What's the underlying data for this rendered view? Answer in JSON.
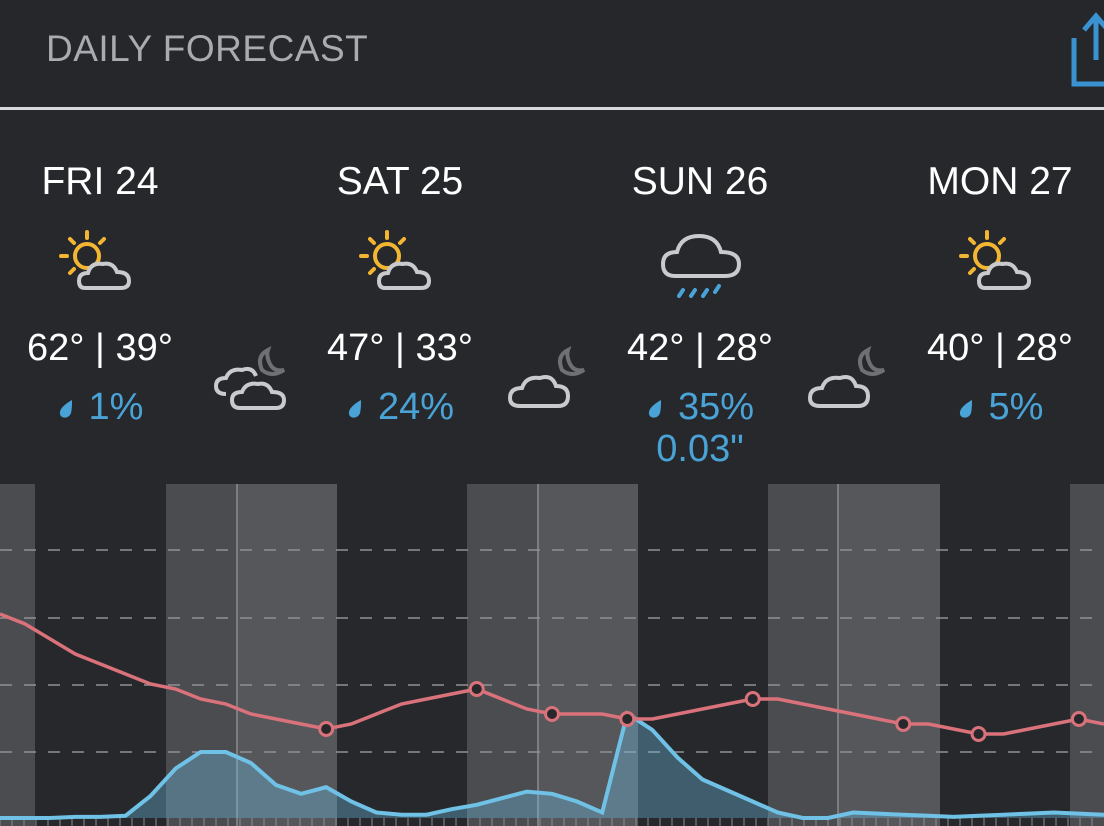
{
  "header": {
    "title": "DAILY FORECAST"
  },
  "days": [
    {
      "name": "FRI 24",
      "temps": "62° | 39°",
      "precip": "1%",
      "amount": "",
      "day_icon": "partly-sunny-icon",
      "night_icon": "partly-cloudy-night-icon"
    },
    {
      "name": "SAT 25",
      "temps": "47° | 33°",
      "precip": "24%",
      "amount": "",
      "day_icon": "partly-sunny-icon",
      "night_icon": "partly-cloudy-night-icon"
    },
    {
      "name": "SUN 26",
      "temps": "42° | 28°",
      "precip": "35%",
      "amount": "0.03\"",
      "day_icon": "rain-icon",
      "night_icon": "partly-cloudy-night-icon"
    },
    {
      "name": "MON 27",
      "temps": "40° | 28°",
      "precip": "5%",
      "amount": "",
      "day_icon": "partly-sunny-icon"
    }
  ],
  "colors": {
    "background": "#26282c",
    "text": "#ffffff",
    "precip": "#4aa3d6",
    "temp_line": "#d9727a",
    "precip_line": "#6fc1e5",
    "sun": "#f2b632",
    "cloud": "#c9cacc"
  },
  "chart_data": {
    "type": "line",
    "series": [
      {
        "values": [
          62,
          60,
          57,
          54,
          52,
          50,
          48,
          47,
          45,
          44,
          42,
          41,
          40,
          39,
          40,
          42,
          44,
          45,
          46,
          47,
          45,
          43,
          42,
          42,
          42,
          41,
          41,
          42,
          43,
          44,
          45,
          45,
          44,
          43,
          42,
          41,
          40,
          40,
          39,
          38,
          38,
          39,
          40,
          41,
          40
        ]
      },
      {
        "values": [
          0,
          0,
          0,
          1,
          1,
          2,
          20,
          45,
          60,
          60,
          50,
          30,
          22,
          28,
          15,
          5,
          3,
          3,
          8,
          12,
          18,
          24,
          22,
          15,
          5,
          95,
          80,
          55,
          35,
          25,
          15,
          5,
          0,
          0,
          5,
          4,
          3,
          2,
          1,
          2,
          3,
          4,
          5,
          4,
          3
        ]
      }
    ],
    "grid": true
  }
}
